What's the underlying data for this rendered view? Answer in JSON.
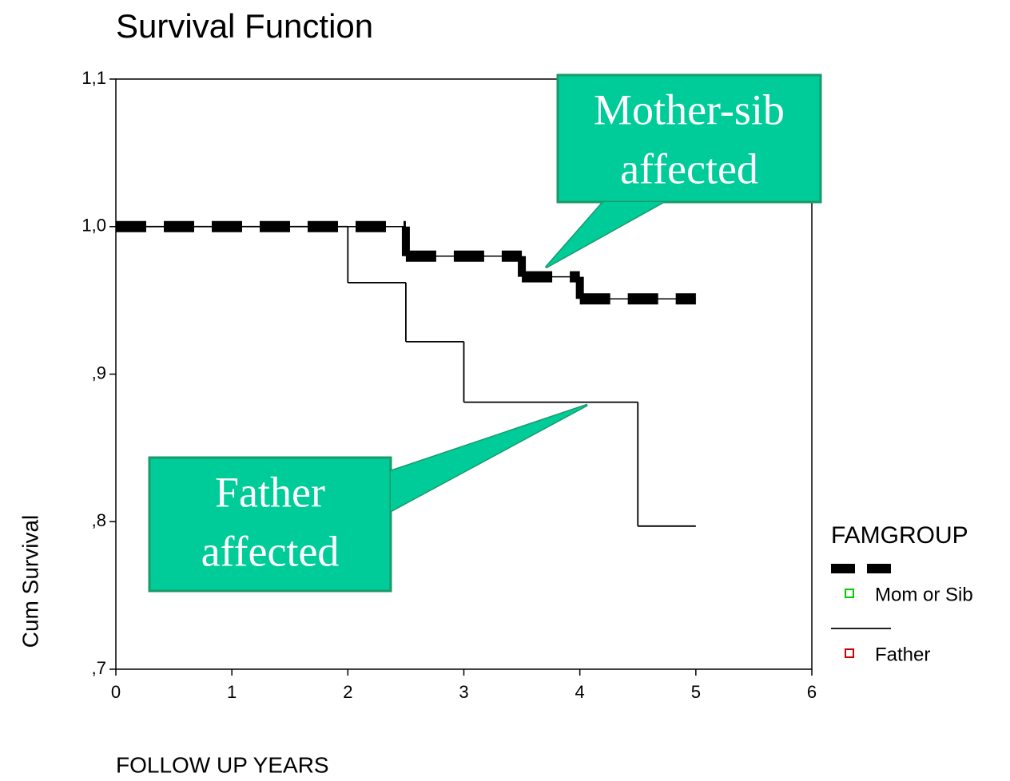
{
  "chart_data": {
    "type": "step",
    "title": "Survival Function",
    "x_label": "FOLLOW UP YEARS",
    "y_label": "Cum Survival",
    "xlim": [
      0,
      6
    ],
    "xticks": [
      0,
      1,
      2,
      3,
      4,
      5,
      6
    ],
    "ylim": [
      0.7,
      1.1
    ],
    "yticks": [
      {
        "value": 0.7,
        "label": ",7"
      },
      {
        "value": 0.8,
        "label": ",8"
      },
      {
        "value": 0.9,
        "label": ",9"
      },
      {
        "value": 1.0,
        "label": "1,0"
      },
      {
        "value": 1.1,
        "label": "1,1"
      }
    ],
    "legend_title": "FAMGROUP",
    "series": [
      {
        "name": "Mom or Sib",
        "color": "#000000",
        "style": "dashed",
        "marker_color": "#00cc00",
        "x": [
          0,
          2.5,
          3.5,
          4,
          5
        ],
        "values": [
          1.0,
          0.98,
          0.966,
          0.951,
          0.951
        ]
      },
      {
        "name": "Father",
        "color": "#000000",
        "style": "solid",
        "marker_color": "#cc0000",
        "x": [
          0,
          2,
          2.5,
          3,
          4.5,
          5
        ],
        "values": [
          1.0,
          0.962,
          0.922,
          0.881,
          0.797,
          0.797
        ]
      }
    ],
    "annotations": [
      [
        "Mother-sib",
        "affected"
      ],
      [
        "Father",
        "affected"
      ]
    ]
  }
}
